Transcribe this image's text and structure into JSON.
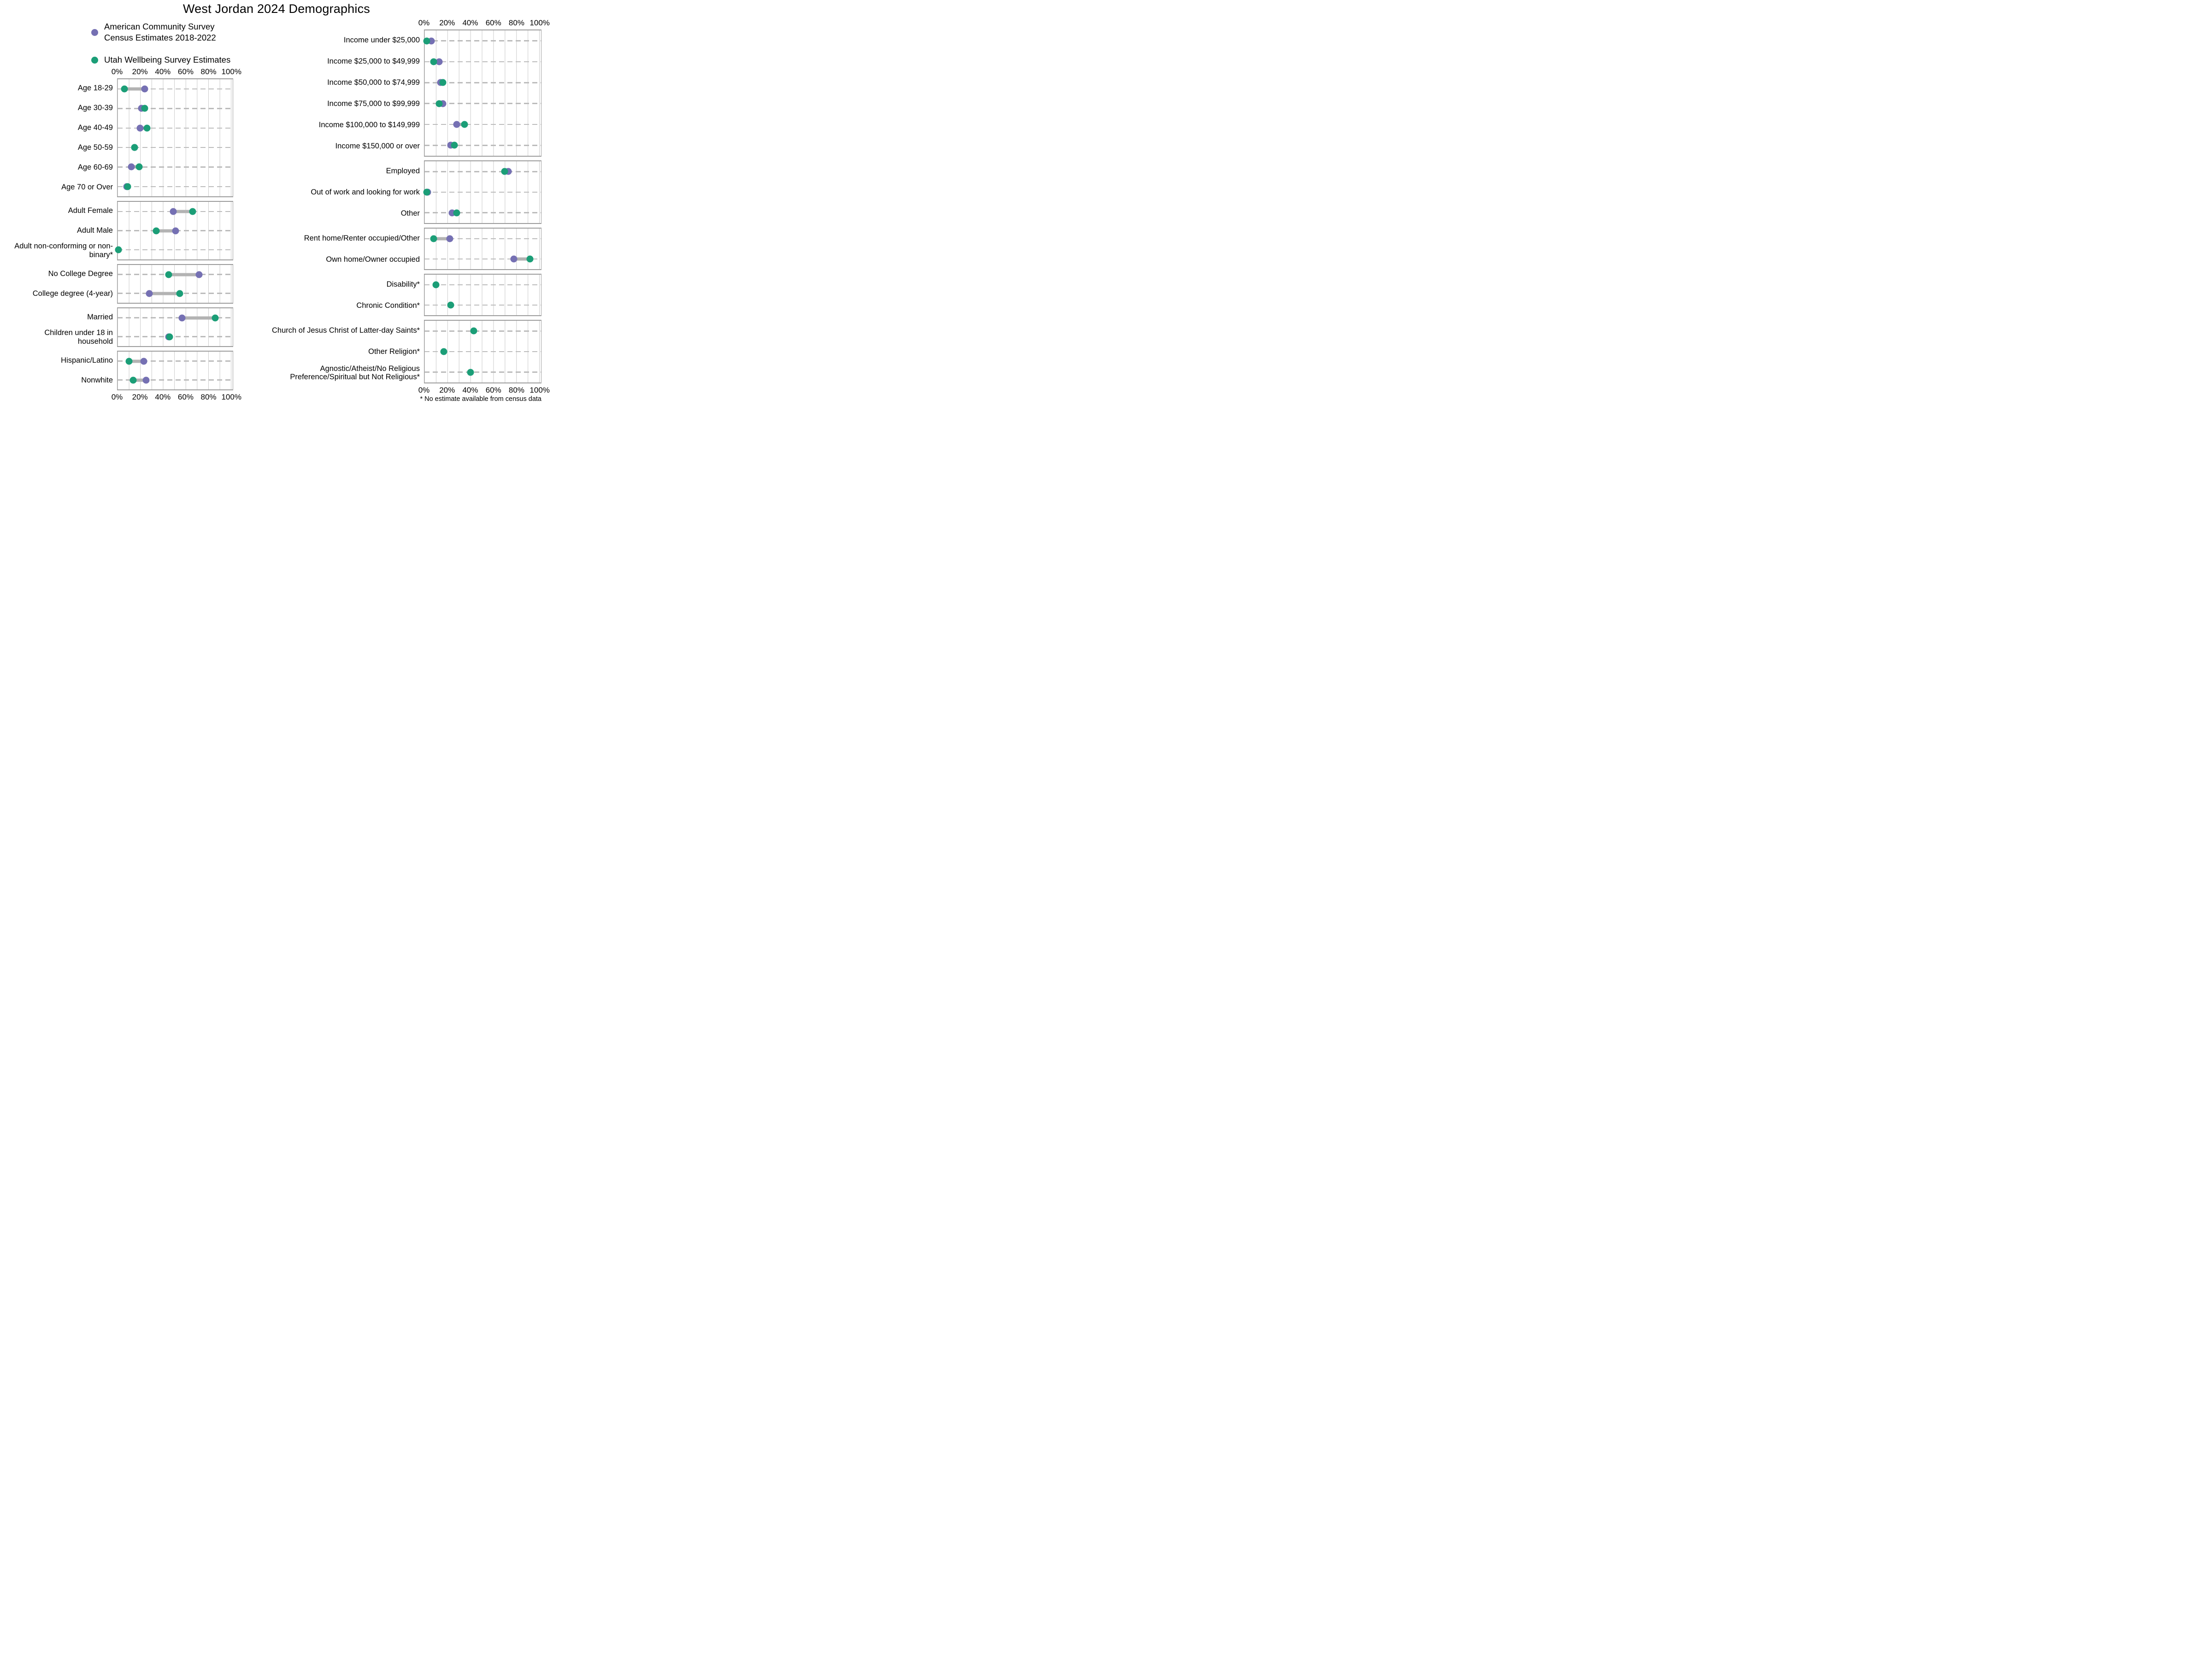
{
  "title": "West Jordan 2024 Demographics",
  "legend": [
    {
      "series": "census",
      "line1": "American Community Survey",
      "line2": "Census Estimates 2018-2022"
    },
    {
      "series": "survey",
      "line1": "Utah Wellbeing Survey Estimates",
      "line2": ""
    }
  ],
  "footnote": "* No estimate available from census data",
  "colors": {
    "census": "#7570b3",
    "survey": "#1b9e77",
    "connector": "#b3b3b3",
    "gridline": "#c9c9c9",
    "midline": "#bcbcbc"
  },
  "chart_data": {
    "type": "scatter",
    "subtype": "dumbbell-dot-plot",
    "title": "West Jordan 2024 Demographics",
    "unit": "percent",
    "xlim": [
      0,
      100
    ],
    "grid": "on",
    "legend_position": "top-left",
    "x_ticks": [
      "0%",
      "20%",
      "40%",
      "60%",
      "80%",
      "100%"
    ],
    "tick_values": [
      0,
      20,
      40,
      60,
      80,
      100
    ],
    "series_names": [
      "American Community Survey Census Estimates 2018-2022",
      "Utah Wellbeing Survey Estimates"
    ],
    "columns": [
      {
        "side": "left",
        "panels": [
          {
            "rows": [
              {
                "label": "Age 18-29",
                "census": 24,
                "survey": 6
              },
              {
                "label": "Age 30-39",
                "census": 21,
                "survey": 24
              },
              {
                "label": "Age 40-49",
                "census": 20,
                "survey": 26
              },
              {
                "label": "Age 50-59",
                "census": 15,
                "survey": 15
              },
              {
                "label": "Age 60-69",
                "census": 12,
                "survey": 19
              },
              {
                "label": "Age 70 or Over",
                "census": 8,
                "survey": 9
              }
            ]
          },
          {
            "rows": [
              {
                "label": "Adult Female",
                "census": 49,
                "survey": 66
              },
              {
                "label": "Adult Male",
                "census": 51,
                "survey": 34
              },
              {
                "label": "Adult non-conforming or non-binary*",
                "census": null,
                "survey": 1
              }
            ]
          },
          {
            "rows": [
              {
                "label": "No College Degree",
                "census": 72,
                "survey": 45
              },
              {
                "label": "College degree (4-year)",
                "census": 28,
                "survey": 55
              }
            ]
          },
          {
            "rows": [
              {
                "label": "Married",
                "census": 57,
                "survey": 86
              },
              {
                "label": "Children under 18 in household",
                "census": 45,
                "survey": 46
              }
            ]
          },
          {
            "rows": [
              {
                "label": "Hispanic/Latino",
                "census": 23,
                "survey": 10
              },
              {
                "label": "Nonwhite",
                "census": 25,
                "survey": 14
              }
            ]
          }
        ]
      },
      {
        "side": "right",
        "panels": [
          {
            "rows": [
              {
                "label": "Income under $25,000",
                "census": 6,
                "survey": 2
              },
              {
                "label": "Income $25,000 to $49,999",
                "census": 13,
                "survey": 8
              },
              {
                "label": "Income $50,000 to $74,999",
                "census": 14,
                "survey": 16
              },
              {
                "label": "Income $75,000 to $99,999",
                "census": 16,
                "survey": 13
              },
              {
                "label": "Income $100,000 to $149,999",
                "census": 28,
                "survey": 35
              },
              {
                "label": "Income $150,000 or over",
                "census": 23,
                "survey": 26
              }
            ]
          },
          {
            "rows": [
              {
                "label": "Employed",
                "census": 73,
                "survey": 70
              },
              {
                "label": "Out of work and looking for work",
                "census": 3,
                "survey": 2
              },
              {
                "label": "Other",
                "census": 24,
                "survey": 28
              }
            ]
          },
          {
            "rows": [
              {
                "label": "Rent home/Renter occupied/Other",
                "census": 22,
                "survey": 8
              },
              {
                "label": "Own home/Owner occupied",
                "census": 78,
                "survey": 92
              }
            ]
          },
          {
            "rows": [
              {
                "label": "Disability*",
                "census": null,
                "survey": 10
              },
              {
                "label": "Chronic Condition*",
                "census": null,
                "survey": 23
              }
            ]
          },
          {
            "rows": [
              {
                "label": "Church of Jesus Christ of Latter-day Saints*",
                "census": null,
                "survey": 43
              },
              {
                "label": "Other Religion*",
                "census": null,
                "survey": 17
              },
              {
                "label": "Agnostic/Atheist/No Religious Preference/Spiritual but Not Religious*",
                "census": null,
                "survey": 40
              }
            ]
          }
        ]
      }
    ]
  }
}
